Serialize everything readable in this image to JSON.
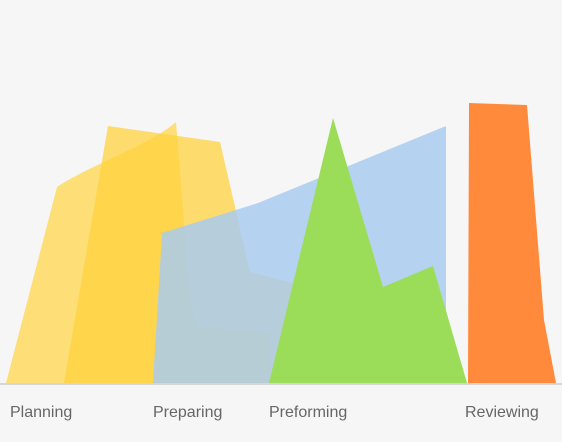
{
  "phases": [
    {
      "label": "Planning",
      "color": "#ffd23f"
    },
    {
      "label": "Preparing",
      "color": "#ffd23f"
    },
    {
      "label": "Preforming",
      "color": "#9bdd59"
    },
    {
      "label": "Reviewing",
      "color": "#ff8a3c"
    }
  ],
  "colors": {
    "background": "#f6f6f6",
    "baseline": "#d6d6d6",
    "planning_shape": "#ffd95f",
    "preparing_shape": "#ffd23f",
    "blue_shape": "#a9cbee",
    "preforming_shape": "#9bdd59",
    "reviewing_shape": "#ff8a3c",
    "label_text": "#666666"
  }
}
